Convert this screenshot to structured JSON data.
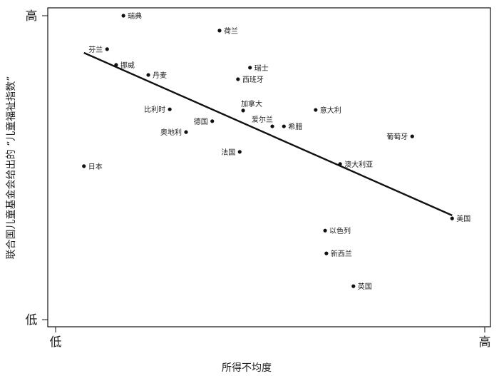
{
  "chart_data": {
    "type": "scatter",
    "title": "",
    "xlabel": "所得不均度",
    "ylabel": "联合国儿童基金会给出的 “儿童福祉指数”",
    "x_tick_labels": [
      "低",
      "高"
    ],
    "y_tick_labels": [
      "低",
      "高"
    ],
    "xlim": [
      0,
      100
    ],
    "ylim": [
      0,
      100
    ],
    "grid": false,
    "point_color": "#111111",
    "line_color": "#111111",
    "points": [
      {
        "label": "瑞典",
        "x": 15.8,
        "y": 100,
        "side": "right"
      },
      {
        "label": "荷兰",
        "x": 38.2,
        "y": 95.1,
        "side": "right"
      },
      {
        "label": "芬兰",
        "x": 12.0,
        "y": 89.0,
        "side": "left"
      },
      {
        "label": "挪威",
        "x": 14.1,
        "y": 83.8,
        "side": "right"
      },
      {
        "label": "丹麦",
        "x": 21.6,
        "y": 80.5,
        "side": "right"
      },
      {
        "label": "瑞士",
        "x": 45.3,
        "y": 82.9,
        "side": "right"
      },
      {
        "label": "西班牙",
        "x": 42.5,
        "y": 79.1,
        "side": "right"
      },
      {
        "label": "比利时",
        "x": 26.6,
        "y": 69.2,
        "side": "left"
      },
      {
        "label": "加拿大",
        "x": 43.7,
        "y": 68.8,
        "side": "above"
      },
      {
        "label": "意大利",
        "x": 60.6,
        "y": 69.0,
        "side": "right"
      },
      {
        "label": "德国",
        "x": 36.5,
        "y": 65.3,
        "side": "left"
      },
      {
        "label": "爱尔兰",
        "x": 50.5,
        "y": 63.6,
        "side": "above-left"
      },
      {
        "label": "希腊",
        "x": 53.2,
        "y": 63.6,
        "side": "right"
      },
      {
        "label": "奥地利",
        "x": 30.4,
        "y": 61.7,
        "side": "left"
      },
      {
        "label": "葡萄牙",
        "x": 83.1,
        "y": 60.3,
        "side": "left"
      },
      {
        "label": "法国",
        "x": 42.9,
        "y": 55.2,
        "side": "left"
      },
      {
        "label": "日本",
        "x": 6.6,
        "y": 50.5,
        "side": "right"
      },
      {
        "label": "澳大利亚",
        "x": 66.3,
        "y": 51.2,
        "side": "right"
      },
      {
        "label": "美国",
        "x": 92.4,
        "y": 33.3,
        "side": "right"
      },
      {
        "label": "以色列",
        "x": 62.8,
        "y": 29.3,
        "side": "right"
      },
      {
        "label": "新西兰",
        "x": 63.1,
        "y": 21.8,
        "side": "right"
      },
      {
        "label": "英国",
        "x": 69.4,
        "y": 11.0,
        "side": "right"
      }
    ],
    "trend_line": {
      "x": [
        6.6,
        92.4
      ],
      "y": [
        87.8,
        34.3
      ]
    }
  }
}
